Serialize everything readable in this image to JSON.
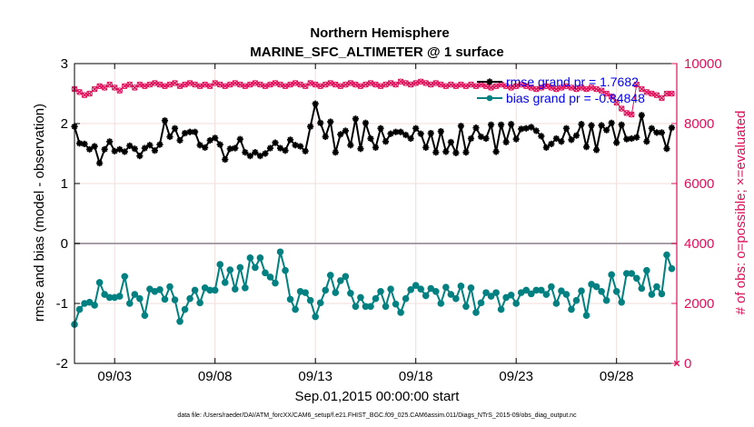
{
  "chart_data": {
    "type": "line",
    "title": "Northern Hemisphere",
    "subtitle": "MARINE_SFC_ALTIMETER @ 1 surface",
    "xlabel": "Sep.01,2015 00:00:00 start",
    "ylabel": "rmse and bias (model - observation)",
    "y2label": "# of obs: o=possible; ×=evaluated",
    "footnote": "data file: /Users/raeder/DAI/ATM_forcXX/CAM6_setup/f.e21.FHIST_BGC.f09_025.CAM6assim.011/Diags_NTrS_2015-09/obs_diag_output.nc",
    "xlim": [
      1.0,
      31.0
    ],
    "ylim": [
      -2,
      3
    ],
    "y2lim": [
      0,
      10000
    ],
    "x_tick_labels": [
      "09/03",
      "09/08",
      "09/13",
      "09/18",
      "09/23",
      "09/28"
    ],
    "x_tick_positions": [
      3,
      8,
      13,
      18,
      23,
      28
    ],
    "y_ticks": [
      "-2",
      "-1",
      "0",
      "1",
      "2",
      "3"
    ],
    "y2_ticks": [
      "0",
      "2000",
      "4000",
      "6000",
      "8000",
      "10000"
    ],
    "grid": true,
    "legend_position": "top-right",
    "colors": {
      "rmse": "#000000",
      "bias": "#008080",
      "obs": "#e0105a",
      "legend_text": "#0000ee",
      "y2axis": "#e0105a",
      "zero_line": "#a89ea8"
    },
    "series": [
      {
        "name": "rmse grand pr = 1.7682",
        "marker": "star",
        "x": [
          1.0,
          1.25,
          1.5,
          1.75,
          2.0,
          2.25,
          2.5,
          2.75,
          3.0,
          3.25,
          3.5,
          3.75,
          4.0,
          4.25,
          4.5,
          4.75,
          5.0,
          5.25,
          5.5,
          5.75,
          6.0,
          6.25,
          6.5,
          6.75,
          7.0,
          7.25,
          7.5,
          7.75,
          8.0,
          8.25,
          8.5,
          8.75,
          9.0,
          9.25,
          9.5,
          9.75,
          10.0,
          10.25,
          10.5,
          10.75,
          11.0,
          11.25,
          11.5,
          11.75,
          12.0,
          12.25,
          12.5,
          12.75,
          13.0,
          13.25,
          13.5,
          13.75,
          14.0,
          14.25,
          14.5,
          14.75,
          15.0,
          15.25,
          15.5,
          15.75,
          16.0,
          16.25,
          16.5,
          16.75,
          17.0,
          17.25,
          17.5,
          17.75,
          18.0,
          18.25,
          18.5,
          18.75,
          19.0,
          19.25,
          19.5,
          19.75,
          20.0,
          20.25,
          20.5,
          20.75,
          21.0,
          21.25,
          21.5,
          21.75,
          22.0,
          22.25,
          22.5,
          22.75,
          23.0,
          23.25,
          23.5,
          23.75,
          24.0,
          24.25,
          24.5,
          24.75,
          25.0,
          25.25,
          25.5,
          25.75,
          26.0,
          26.25,
          26.5,
          26.75,
          27.0,
          27.25,
          27.5,
          27.75,
          28.0,
          28.25,
          28.5,
          28.75,
          29.0,
          29.25,
          29.5,
          29.75,
          30.0,
          30.25,
          30.5,
          30.75
        ],
        "values": [
          1.95,
          1.67,
          1.66,
          1.57,
          1.62,
          1.34,
          1.57,
          1.7,
          1.54,
          1.57,
          1.53,
          1.63,
          1.58,
          1.46,
          1.59,
          1.64,
          1.55,
          1.65,
          2.05,
          1.78,
          1.92,
          1.72,
          1.84,
          1.86,
          1.86,
          1.64,
          1.6,
          1.72,
          1.76,
          1.65,
          1.4,
          1.58,
          1.59,
          1.74,
          1.52,
          1.46,
          1.52,
          1.46,
          1.5,
          1.59,
          1.68,
          1.59,
          1.55,
          1.73,
          1.64,
          1.62,
          1.54,
          1.95,
          2.33,
          2.01,
          1.78,
          2.03,
          1.52,
          1.82,
          1.88,
          1.64,
          2.08,
          1.58,
          2.01,
          1.75,
          1.6,
          1.92,
          1.7,
          1.83,
          1.86,
          1.86,
          1.81,
          1.75,
          1.92,
          1.83,
          1.6,
          1.84,
          1.52,
          1.87,
          1.53,
          1.69,
          1.51,
          1.96,
          1.52,
          1.75,
          1.93,
          1.78,
          1.75,
          1.98,
          1.53,
          1.98,
          1.69,
          1.99,
          1.74,
          1.91,
          1.92,
          1.94,
          1.88,
          1.79,
          1.6,
          1.66,
          1.75,
          1.7,
          1.92,
          1.73,
          1.8,
          1.99,
          1.61,
          1.97,
          1.56,
          1.97,
          1.89,
          2.01,
          1.68,
          1.98,
          1.74,
          1.75,
          1.77,
          2.14,
          1.7,
          1.92,
          1.85,
          1.85,
          1.58,
          1.93
        ]
      },
      {
        "name": "bias grand pr = -0.84848",
        "marker": "circle",
        "x": [
          1.0,
          1.25,
          1.5,
          1.75,
          2.0,
          2.25,
          2.5,
          2.75,
          3.0,
          3.25,
          3.5,
          3.75,
          4.0,
          4.25,
          4.5,
          4.75,
          5.0,
          5.25,
          5.5,
          5.75,
          6.0,
          6.25,
          6.5,
          6.75,
          7.0,
          7.25,
          7.5,
          7.75,
          8.0,
          8.25,
          8.5,
          8.75,
          9.0,
          9.25,
          9.5,
          9.75,
          10.0,
          10.25,
          10.5,
          10.75,
          11.0,
          11.25,
          11.5,
          11.75,
          12.0,
          12.25,
          12.5,
          12.75,
          13.0,
          13.25,
          13.5,
          13.75,
          14.0,
          14.25,
          14.5,
          14.75,
          15.0,
          15.25,
          15.5,
          15.75,
          16.0,
          16.25,
          16.5,
          16.75,
          17.0,
          17.25,
          17.5,
          17.75,
          18.0,
          18.25,
          18.5,
          18.75,
          19.0,
          19.25,
          19.5,
          19.75,
          20.0,
          20.25,
          20.5,
          20.75,
          21.0,
          21.25,
          21.5,
          21.75,
          22.0,
          22.25,
          22.5,
          22.75,
          23.0,
          23.25,
          23.5,
          23.75,
          24.0,
          24.25,
          24.5,
          24.75,
          25.0,
          25.25,
          25.5,
          25.75,
          26.0,
          26.25,
          26.5,
          26.75,
          27.0,
          27.25,
          27.5,
          27.75,
          28.0,
          28.25,
          28.5,
          28.75,
          29.0,
          29.25,
          29.5,
          29.75,
          30.0,
          30.25,
          30.5,
          30.75
        ],
        "values": [
          -1.35,
          -1.1,
          -1.0,
          -0.98,
          -1.03,
          -0.65,
          -0.85,
          -0.9,
          -0.9,
          -0.88,
          -0.55,
          -1.0,
          -0.85,
          -0.92,
          -1.2,
          -0.76,
          -0.8,
          -0.77,
          -0.93,
          -0.72,
          -0.94,
          -1.3,
          -1.1,
          -0.92,
          -0.78,
          -0.99,
          -0.74,
          -0.78,
          -0.78,
          -0.35,
          -0.65,
          -0.44,
          -0.76,
          -0.4,
          -0.74,
          -0.24,
          -0.4,
          -0.24,
          -0.49,
          -0.56,
          -0.66,
          -0.14,
          -0.45,
          -0.93,
          -1.1,
          -0.8,
          -0.82,
          -0.95,
          -1.22,
          -0.99,
          -0.78,
          -0.53,
          -0.82,
          -0.62,
          -0.55,
          -0.83,
          -1.05,
          -0.9,
          -1.05,
          -1.05,
          -0.92,
          -0.8,
          -1.05,
          -0.76,
          -1.01,
          -1.15,
          -0.92,
          -0.77,
          -0.7,
          -0.76,
          -0.87,
          -0.75,
          -0.8,
          -1.0,
          -0.73,
          -0.85,
          -0.92,
          -0.71,
          -1.05,
          -0.74,
          -1.15,
          -0.99,
          -0.82,
          -0.88,
          -0.82,
          -1.1,
          -0.9,
          -0.86,
          -1.0,
          -0.82,
          -0.78,
          -0.84,
          -0.78,
          -0.78,
          -0.85,
          -0.72,
          -1.0,
          -0.79,
          -0.85,
          -1.1,
          -0.95,
          -0.79,
          -1.2,
          -0.68,
          -0.72,
          -0.8,
          -0.95,
          -0.52,
          -0.8,
          -0.98,
          -0.5,
          -0.5,
          -0.58,
          -0.75,
          -0.45,
          -0.85,
          -0.72,
          -0.84,
          -0.19,
          -0.42
        ]
      },
      {
        "name": "# of obs",
        "axis": "right",
        "marker": "x-and-o",
        "x": [
          1.0,
          1.25,
          1.5,
          1.75,
          2.0,
          2.25,
          2.5,
          2.75,
          3.0,
          3.25,
          3.5,
          3.75,
          4.0,
          4.25,
          4.5,
          4.75,
          5.0,
          5.25,
          5.5,
          5.75,
          6.0,
          6.25,
          6.5,
          6.75,
          7.0,
          7.25,
          7.5,
          7.75,
          8.0,
          8.25,
          8.5,
          8.75,
          9.0,
          9.25,
          9.5,
          9.75,
          10.0,
          10.25,
          10.5,
          10.75,
          11.0,
          11.25,
          11.5,
          11.75,
          12.0,
          12.25,
          12.5,
          12.75,
          13.0,
          13.25,
          13.5,
          13.75,
          14.0,
          14.25,
          14.5,
          14.75,
          15.0,
          15.25,
          15.5,
          15.75,
          16.0,
          16.25,
          16.5,
          16.75,
          17.0,
          17.25,
          17.5,
          17.75,
          18.0,
          18.25,
          18.5,
          18.75,
          19.0,
          19.25,
          19.5,
          19.75,
          20.0,
          20.25,
          20.5,
          20.75,
          21.0,
          21.25,
          21.5,
          21.75,
          22.0,
          22.25,
          22.5,
          22.75,
          23.0,
          23.25,
          23.5,
          23.75,
          24.0,
          24.25,
          24.5,
          24.75,
          25.0,
          25.25,
          25.5,
          25.75,
          26.0,
          26.25,
          26.5,
          26.75,
          27.0,
          27.25,
          27.5,
          27.75,
          28.0,
          28.25,
          28.5,
          28.75,
          29.0,
          29.25,
          29.5,
          29.75,
          30.0,
          30.25,
          30.5,
          30.75
        ],
        "values": [
          9150,
          9050,
          8950,
          9000,
          9150,
          9250,
          9200,
          9300,
          9200,
          9100,
          9250,
          9300,
          9200,
          9300,
          9250,
          9300,
          9350,
          9300,
          9250,
          9300,
          9350,
          9250,
          9300,
          9350,
          9300,
          9250,
          9300,
          9250,
          9350,
          9300,
          9250,
          9300,
          9350,
          9300,
          9250,
          9300,
          9350,
          9300,
          9250,
          9300,
          9350,
          9300,
          9250,
          9300,
          9350,
          9300,
          9250,
          9350,
          9300,
          9250,
          9300,
          9350,
          9300,
          9250,
          9300,
          9350,
          9300,
          9250,
          9300,
          9350,
          9300,
          9250,
          9300,
          9350,
          9300,
          9400,
          9350,
          9300,
          9350,
          9400,
          9350,
          9300,
          9350,
          9300,
          9250,
          9300,
          9250,
          9300,
          9250,
          9300,
          9250,
          9300,
          9250,
          9200,
          9250,
          9300,
          9250,
          9200,
          9250,
          9300,
          9250,
          9200,
          9150,
          9200,
          9250,
          9200,
          9150,
          9200,
          9250,
          9200,
          9150,
          9200,
          9150,
          9200,
          9150,
          9100,
          9000,
          8900,
          8700,
          8500,
          8350,
          8300,
          9300,
          9150,
          9050,
          9000,
          8950,
          8850,
          9000,
          9000
        ]
      }
    ]
  }
}
